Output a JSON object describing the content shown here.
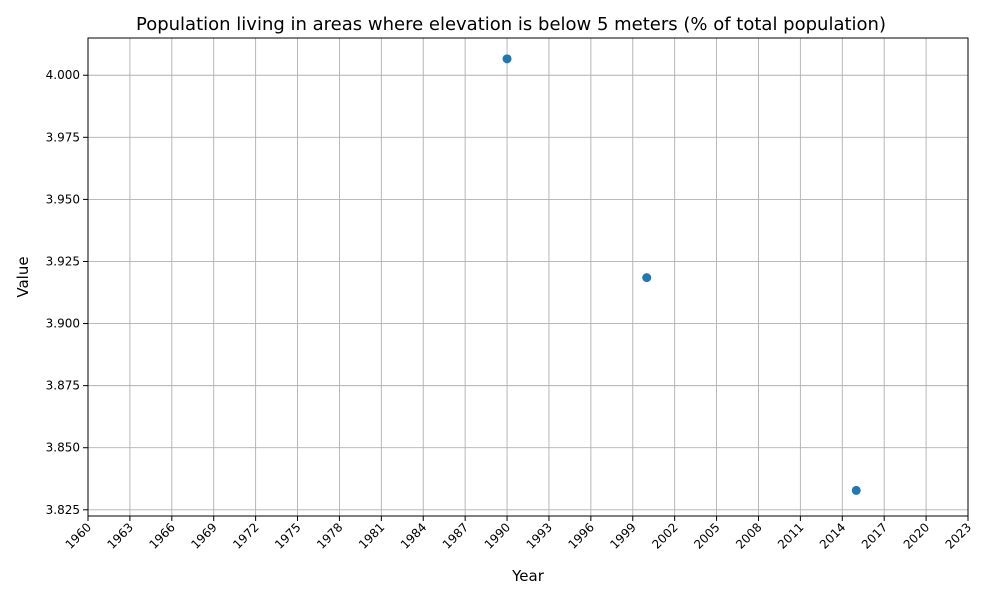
{
  "chart_data": {
    "type": "scatter",
    "title": "Population living in areas where elevation is below 5 meters (% of total population)",
    "xlabel": "Year",
    "ylabel": "Value",
    "xlim": [
      1960,
      2023
    ],
    "ylim": [
      3.8225,
      4.015
    ],
    "xticks": [
      1960,
      1963,
      1966,
      1969,
      1972,
      1975,
      1978,
      1981,
      1984,
      1987,
      1990,
      1993,
      1996,
      1999,
      2002,
      2005,
      2008,
      2011,
      2014,
      2017,
      2020,
      2023
    ],
    "yticks": [
      "3.825",
      "3.850",
      "3.875",
      "3.900",
      "3.925",
      "3.950",
      "3.975",
      "4.000"
    ],
    "grid": true,
    "series": [
      {
        "color": "#1f77b4",
        "points": [
          {
            "x": 1990,
            "y": 4.0066
          },
          {
            "x": 2000,
            "y": 3.9185
          },
          {
            "x": 2015,
            "y": 3.8328
          }
        ]
      }
    ]
  }
}
